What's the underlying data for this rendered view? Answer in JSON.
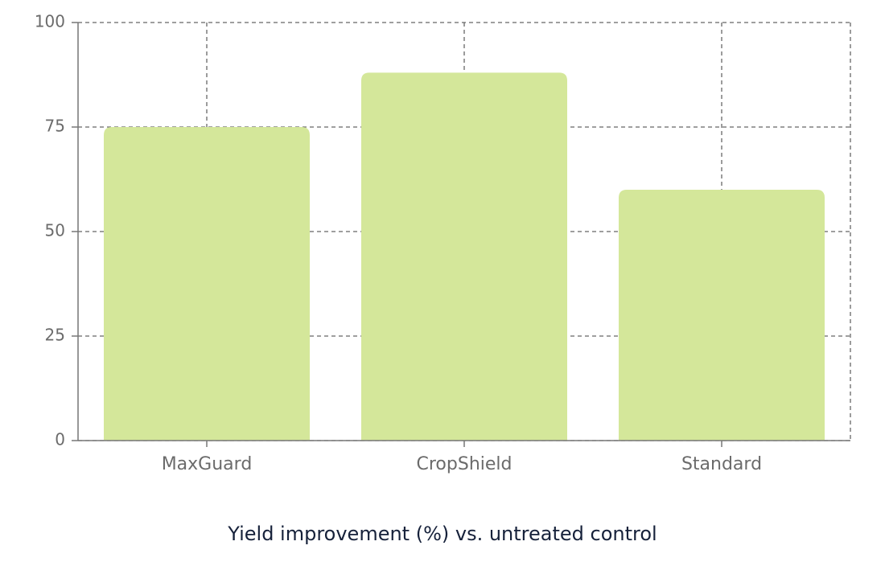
{
  "chart_data": {
    "type": "bar",
    "title": "Yield improvement (%) vs. untreated control",
    "categories": [
      "MaxGuard",
      "CropShield",
      "Standard"
    ],
    "values": [
      75,
      88,
      60
    ],
    "color": "#d4e79a",
    "ylim": [
      0,
      100
    ],
    "yticks": [
      0,
      25,
      50,
      75,
      100
    ],
    "grid": true
  }
}
